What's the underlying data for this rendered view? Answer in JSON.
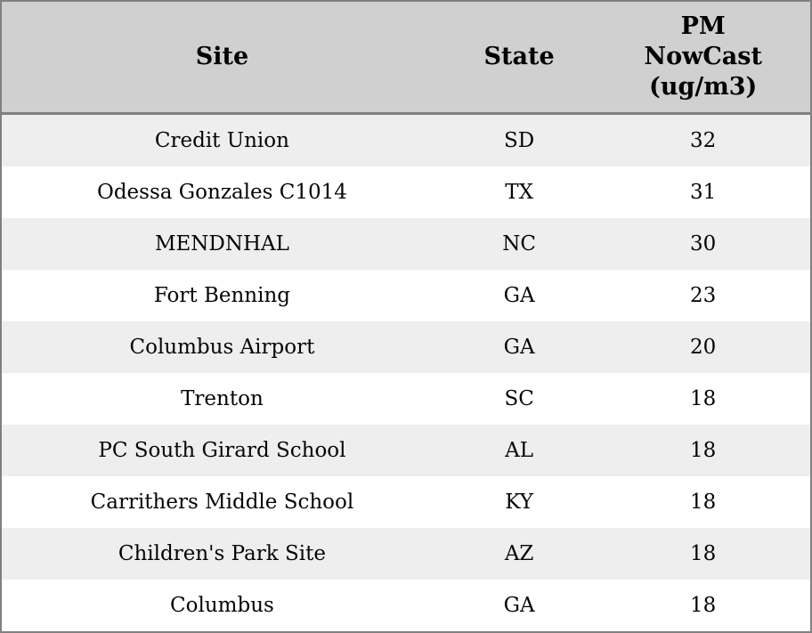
{
  "chart_data": {
    "type": "table",
    "columns": [
      "Site",
      "State",
      "PM NowCast (ug/m3)"
    ],
    "rows": [
      [
        "Credit Union",
        "SD",
        32
      ],
      [
        "Odessa Gonzales C1014",
        "TX",
        31
      ],
      [
        "MENDNHAL",
        "NC",
        30
      ],
      [
        "Fort Benning",
        "GA",
        23
      ],
      [
        "Columbus Airport",
        "GA",
        20
      ],
      [
        "Trenton",
        "SC",
        18
      ],
      [
        "PC South Girard School",
        "AL",
        18
      ],
      [
        "Carrithers Middle School",
        "KY",
        18
      ],
      [
        "Children's Park Site",
        "AZ",
        18
      ],
      [
        "Columbus",
        "GA",
        18
      ]
    ]
  },
  "table": {
    "headers": {
      "site": "Site",
      "state": "State",
      "value": "PM NowCast (ug/m3)"
    },
    "rows": [
      {
        "site": "Credit Union",
        "state": "SD",
        "value": "32"
      },
      {
        "site": "Odessa Gonzales C1014",
        "state": "TX",
        "value": "31"
      },
      {
        "site": "MENDNHAL",
        "state": "NC",
        "value": "30"
      },
      {
        "site": "Fort Benning",
        "state": "GA",
        "value": "23"
      },
      {
        "site": "Columbus Airport",
        "state": "GA",
        "value": "20"
      },
      {
        "site": "Trenton",
        "state": "SC",
        "value": "18"
      },
      {
        "site": "PC South Girard School",
        "state": "AL",
        "value": "18"
      },
      {
        "site": "Carrithers Middle School",
        "state": "KY",
        "value": "18"
      },
      {
        "site": "Children's Park Site",
        "state": "AZ",
        "value": "18"
      },
      {
        "site": "Columbus",
        "state": "GA",
        "value": "18"
      }
    ]
  },
  "colors": {
    "header_bg": "#d0d0d0",
    "row_stripe_bg": "#eeeeee",
    "row_plain_bg": "#ffffff",
    "border": "#808080",
    "text": "#050505"
  }
}
